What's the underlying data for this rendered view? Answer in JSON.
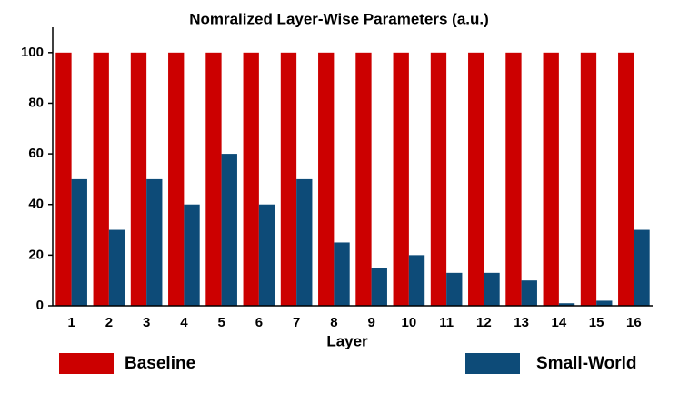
{
  "chart_data": {
    "type": "bar",
    "title": "Nomralized Layer-Wise Parameters (a.u.)",
    "x_label": "Layer",
    "categories": [
      "1",
      "2",
      "3",
      "4",
      "5",
      "6",
      "7",
      "8",
      "9",
      "10",
      "11",
      "12",
      "13",
      "14",
      "15",
      "16"
    ],
    "series": [
      {
        "name": "Baseline",
        "color": "#cc0000",
        "values": [
          100,
          100,
          100,
          100,
          100,
          100,
          100,
          100,
          100,
          100,
          100,
          100,
          100,
          100,
          100,
          100
        ]
      },
      {
        "name": "Small-World",
        "color": "#0d4b78",
        "values": [
          50,
          30,
          50,
          40,
          60,
          40,
          50,
          25,
          15,
          20,
          13,
          13,
          10,
          1,
          2,
          30
        ]
      }
    ],
    "ylim": [
      0,
      110
    ],
    "yticks": [
      0,
      20,
      40,
      60,
      80,
      100
    ],
    "grid": false
  }
}
